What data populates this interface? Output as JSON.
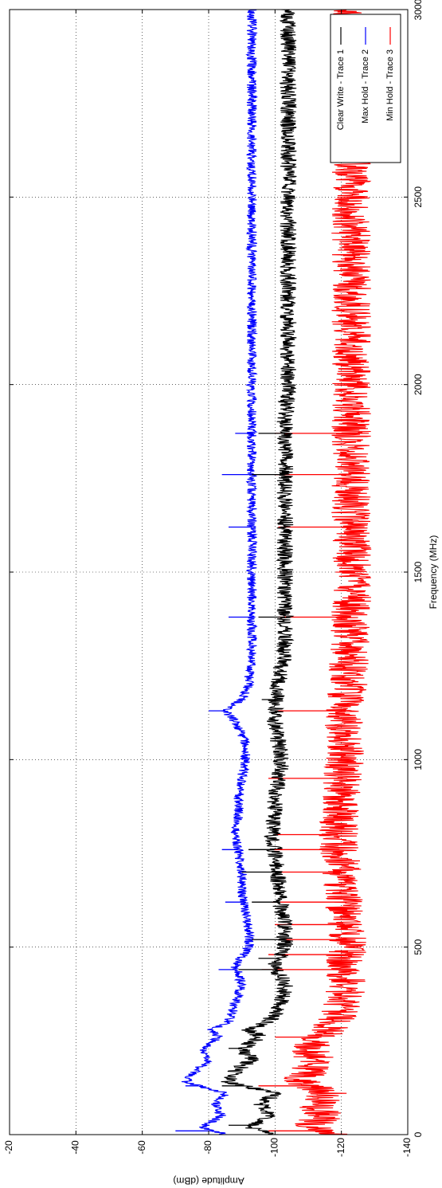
{
  "chart_data": {
    "type": "line",
    "xlabel": "Frequency (MHz)",
    "ylabel": "Amplitude (dBm)",
    "xlim": [
      0,
      3000
    ],
    "ylim": [
      -140,
      -20
    ],
    "x_ticks": [
      0,
      500,
      1000,
      1500,
      2000,
      2500,
      3000
    ],
    "y_ticks": [
      -20,
      -40,
      -60,
      -80,
      -100,
      -120,
      -140
    ],
    "x_tick_labels": [
      "0",
      "500",
      "1000",
      "1500",
      "2000",
      "2500",
      "3000"
    ],
    "y_tick_labels": [
      "-20",
      "-40",
      "-60",
      "-80",
      "-100",
      "-120",
      "-140"
    ],
    "grid": true,
    "orientation": "rotated-90-clockwise",
    "legend_position": "top-right",
    "series": [
      {
        "name": "Clear Write - Trace 1",
        "color": "#000000",
        "noise_band": 2.5,
        "envelope": [
          [
            0,
            -100
          ],
          [
            20,
            -92
          ],
          [
            50,
            -98
          ],
          [
            80,
            -96
          ],
          [
            110,
            -100
          ],
          [
            140,
            -86
          ],
          [
            170,
            -88
          ],
          [
            200,
            -93
          ],
          [
            230,
            -90
          ],
          [
            260,
            -96
          ],
          [
            280,
            -92
          ],
          [
            300,
            -98
          ],
          [
            350,
            -102
          ],
          [
            400,
            -103
          ],
          [
            450,
            -100
          ],
          [
            500,
            -103
          ],
          [
            550,
            -103
          ],
          [
            600,
            -102
          ],
          [
            650,
            -101
          ],
          [
            700,
            -101
          ],
          [
            750,
            -100
          ],
          [
            800,
            -99
          ],
          [
            850,
            -100
          ],
          [
            900,
            -100
          ],
          [
            950,
            -101
          ],
          [
            1000,
            -102
          ],
          [
            1050,
            -101
          ],
          [
            1100,
            -100
          ],
          [
            1150,
            -100
          ],
          [
            1200,
            -101
          ],
          [
            1300,
            -103
          ],
          [
            1400,
            -103
          ],
          [
            1500,
            -103
          ],
          [
            1600,
            -103
          ],
          [
            1700,
            -103
          ],
          [
            1800,
            -103
          ],
          [
            1900,
            -103
          ],
          [
            2000,
            -104
          ],
          [
            2200,
            -104
          ],
          [
            2400,
            -104
          ],
          [
            2600,
            -104
          ],
          [
            2800,
            -104
          ],
          [
            3000,
            -104
          ]
        ],
        "spikes": [
          [
            25,
            -86
          ],
          [
            130,
            -84
          ],
          [
            230,
            -86
          ],
          [
            440,
            -89
          ],
          [
            470,
            -95
          ],
          [
            520,
            -93
          ],
          [
            620,
            -93
          ],
          [
            700,
            -90
          ],
          [
            760,
            -92
          ],
          [
            1160,
            -96
          ],
          [
            1380,
            -95
          ],
          [
            1760,
            -93
          ],
          [
            1870,
            -95
          ]
        ]
      },
      {
        "name": "Max Hold - Trace 2",
        "color": "#0000ff",
        "noise_band": 1.5,
        "envelope": [
          [
            0,
            -85
          ],
          [
            20,
            -78
          ],
          [
            50,
            -84
          ],
          [
            80,
            -82
          ],
          [
            110,
            -85
          ],
          [
            140,
            -73
          ],
          [
            170,
            -76
          ],
          [
            200,
            -80
          ],
          [
            230,
            -78
          ],
          [
            260,
            -83
          ],
          [
            280,
            -81
          ],
          [
            300,
            -86
          ],
          [
            350,
            -88
          ],
          [
            400,
            -90
          ],
          [
            450,
            -88
          ],
          [
            500,
            -92
          ],
          [
            550,
            -92
          ],
          [
            600,
            -91
          ],
          [
            650,
            -90
          ],
          [
            700,
            -90
          ],
          [
            750,
            -89
          ],
          [
            800,
            -88
          ],
          [
            850,
            -89
          ],
          [
            900,
            -89
          ],
          [
            950,
            -90
          ],
          [
            1000,
            -91
          ],
          [
            1050,
            -91
          ],
          [
            1100,
            -88
          ],
          [
            1130,
            -85
          ],
          [
            1160,
            -90
          ],
          [
            1200,
            -92
          ],
          [
            1300,
            -93
          ],
          [
            1400,
            -93
          ],
          [
            1500,
            -93
          ],
          [
            1600,
            -93
          ],
          [
            1700,
            -93
          ],
          [
            1800,
            -93
          ],
          [
            1900,
            -93
          ],
          [
            2000,
            -93
          ],
          [
            2200,
            -93
          ],
          [
            2400,
            -93
          ],
          [
            2600,
            -93
          ],
          [
            2800,
            -93
          ],
          [
            3000,
            -93
          ]
        ],
        "spikes": [
          [
            10,
            -70
          ],
          [
            130,
            -73
          ],
          [
            440,
            -83
          ],
          [
            620,
            -85
          ],
          [
            760,
            -84
          ],
          [
            1130,
            -80
          ],
          [
            1380,
            -86
          ],
          [
            1620,
            -86
          ],
          [
            1760,
            -84
          ],
          [
            1870,
            -88
          ]
        ]
      },
      {
        "name": "Min Hold - Trace 3",
        "color": "#ff0000",
        "noise_band": 6,
        "envelope": [
          [
            0,
            -118
          ],
          [
            20,
            -110
          ],
          [
            50,
            -115
          ],
          [
            80,
            -112
          ],
          [
            110,
            -116
          ],
          [
            140,
            -108
          ],
          [
            170,
            -110
          ],
          [
            200,
            -112
          ],
          [
            230,
            -110
          ],
          [
            260,
            -114
          ],
          [
            300,
            -118
          ],
          [
            350,
            -120
          ],
          [
            400,
            -122
          ],
          [
            450,
            -120
          ],
          [
            500,
            -122
          ],
          [
            550,
            -121
          ],
          [
            600,
            -121
          ],
          [
            700,
            -120
          ],
          [
            800,
            -119
          ],
          [
            900,
            -120
          ],
          [
            1000,
            -121
          ],
          [
            1100,
            -121
          ],
          [
            1200,
            -122
          ],
          [
            1400,
            -123
          ],
          [
            1600,
            -123
          ],
          [
            1800,
            -123
          ],
          [
            2000,
            -123
          ],
          [
            2200,
            -123
          ],
          [
            2400,
            -123
          ],
          [
            2600,
            -123
          ],
          [
            2800,
            -123
          ],
          [
            3000,
            -123
          ]
        ],
        "spikes": [
          [
            10,
            -98
          ],
          [
            130,
            -95
          ],
          [
            260,
            -100
          ],
          [
            440,
            -96
          ],
          [
            480,
            -98
          ],
          [
            520,
            -101
          ],
          [
            560,
            -100
          ],
          [
            620,
            -99
          ],
          [
            700,
            -101
          ],
          [
            760,
            -99
          ],
          [
            800,
            -100
          ],
          [
            950,
            -98
          ],
          [
            1130,
            -100
          ],
          [
            1380,
            -101
          ],
          [
            1620,
            -101
          ],
          [
            1760,
            -100
          ],
          [
            1870,
            -100
          ]
        ]
      }
    ]
  }
}
